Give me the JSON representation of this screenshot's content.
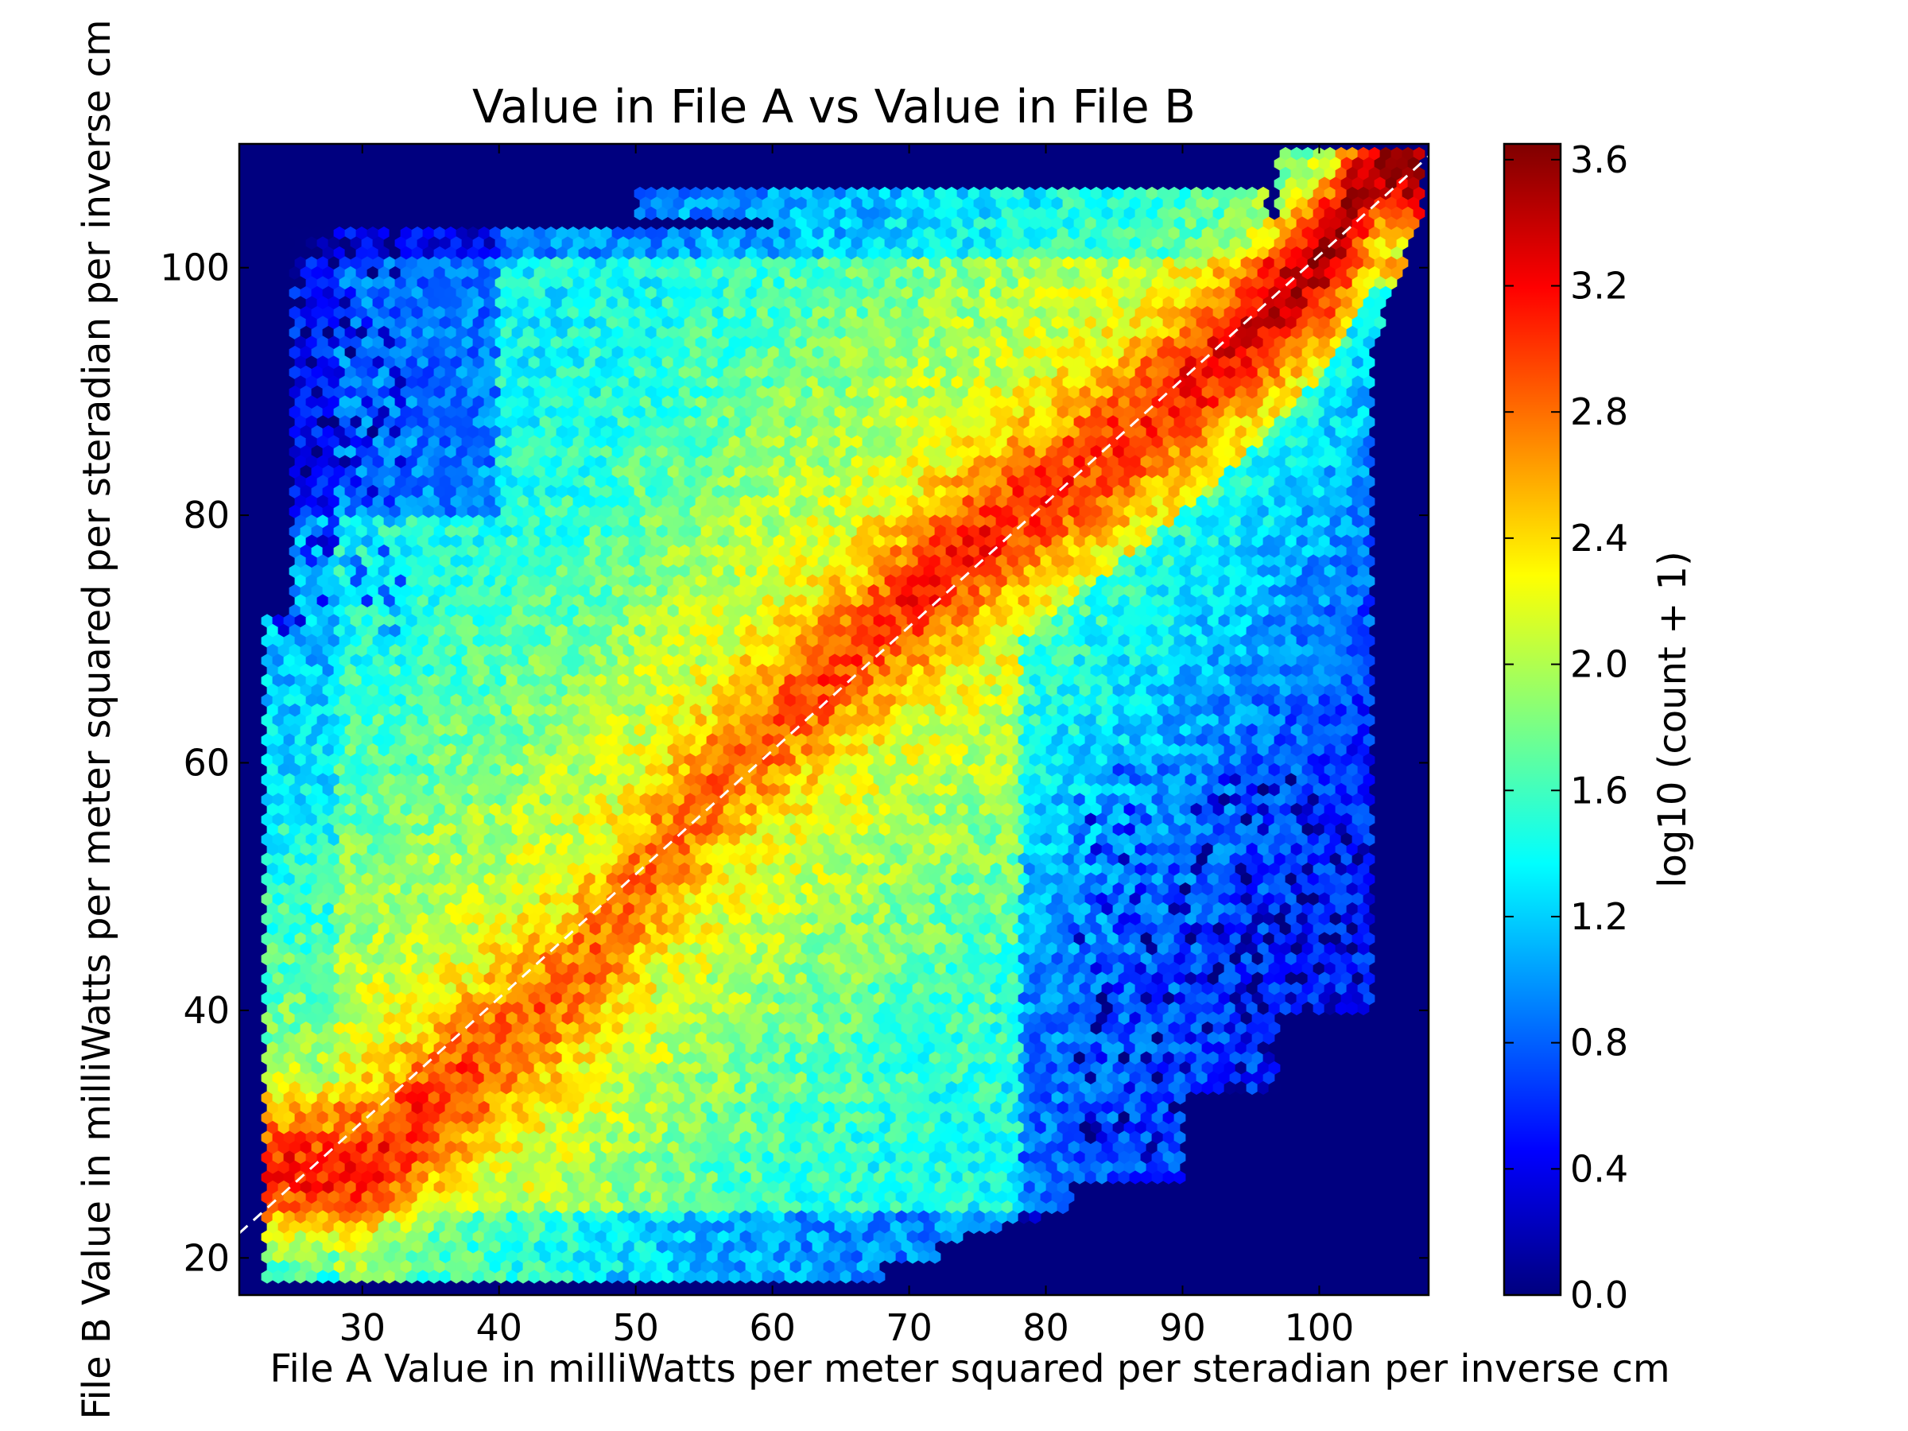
{
  "chart_data": {
    "type": "heatmap",
    "subtype": "hexbin",
    "title": "Value in File A vs Value in File B",
    "xlabel": "File A Value in milliWatts per meter squared per steradian per inverse cm",
    "ylabel": "File B Value in milliWatts per meter squared per steradian per inverse cm",
    "xlim": [
      21,
      108
    ],
    "ylim": [
      17,
      110
    ],
    "x_ticks": [
      30,
      40,
      50,
      60,
      70,
      80,
      90,
      100
    ],
    "y_ticks": [
      20,
      40,
      60,
      80,
      100
    ],
    "reference_line": {
      "style": "dashed",
      "color": "#ffffff",
      "x": [
        21,
        108
      ],
      "y": [
        22,
        109
      ]
    },
    "background_value": 0.0,
    "colorbar": {
      "label": "log10 (count + 1)",
      "min": 0.0,
      "max": 3.65,
      "ticks": [
        "0.0",
        "0.4",
        "0.8",
        "1.2",
        "1.6",
        "2.0",
        "2.4",
        "2.8",
        "3.2",
        "3.6"
      ],
      "colormap": "jet"
    },
    "density_description": {
      "ridge_points": [
        {
          "x": 30,
          "y": 27,
          "value": 3.1
        },
        {
          "x": 45,
          "y": 42,
          "value": 2.8
        },
        {
          "x": 57,
          "y": 60,
          "value": 2.8
        },
        {
          "x": 65,
          "y": 68,
          "value": 2.95
        },
        {
          "x": 73,
          "y": 76,
          "value": 3.1
        },
        {
          "x": 83,
          "y": 84,
          "value": 3.0
        },
        {
          "x": 92,
          "y": 92,
          "value": 3.15
        },
        {
          "x": 101,
          "y": 102,
          "value": 3.55
        },
        {
          "x": 104,
          "y": 108,
          "value": 3.5
        }
      ]
    }
  }
}
